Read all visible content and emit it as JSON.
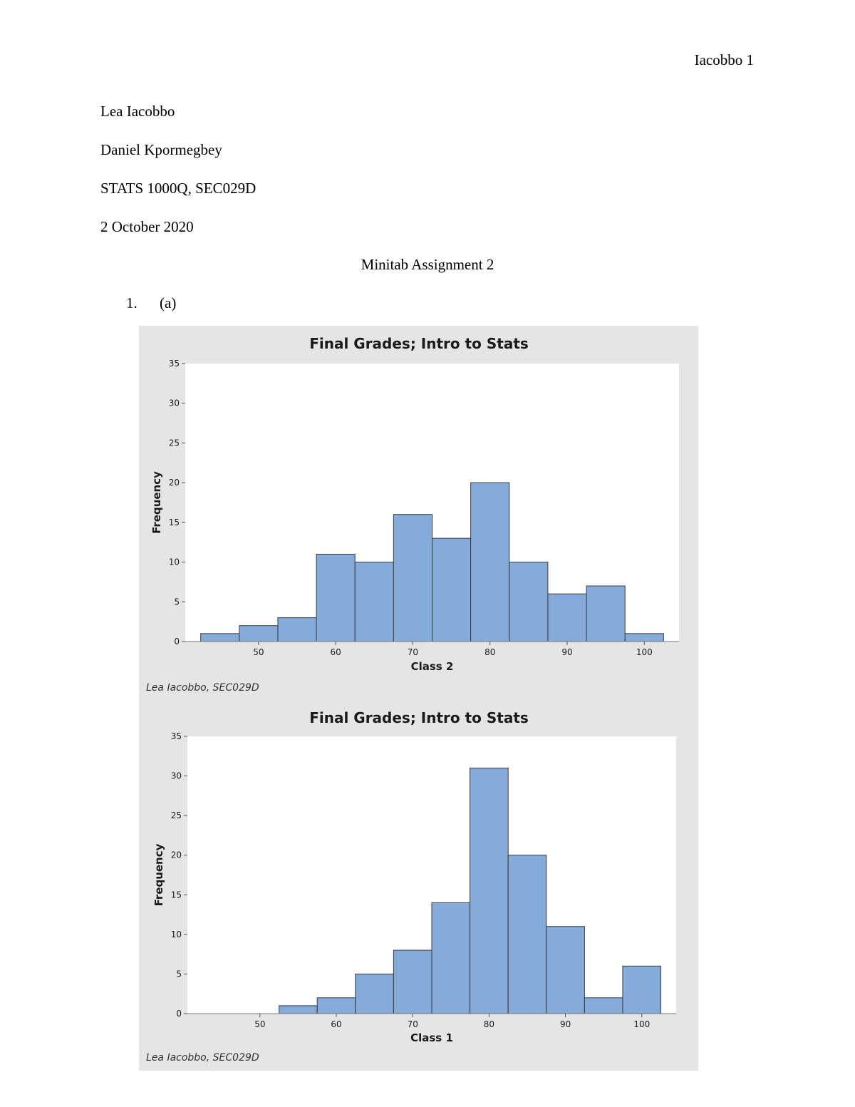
{
  "header": {
    "running_head": "Iacobbo 1"
  },
  "meta": {
    "student": "Lea Iacobbo",
    "instructor": "Daniel Kpormegbey",
    "course": "STATS 1000Q, SEC029D",
    "date": "2 October 2020"
  },
  "title": "Minitab Assignment 2",
  "question": {
    "number": "1.",
    "part": "(a)"
  },
  "colors": {
    "bar_fill": "#84abd9",
    "bar_stroke": "#3a3a3a",
    "figure_bg": "#e5e5e5",
    "plot_bg": "#ffffff"
  },
  "chart_data": [
    {
      "type": "bar",
      "title": "Final Grades; Intro to Stats",
      "xlabel": "Class 2",
      "ylabel": "Frequency",
      "footnote": "Lea Iacobbo, SEC029D",
      "bin_width": 5,
      "bin_centers": [
        45,
        50,
        55,
        60,
        65,
        70,
        75,
        80,
        85,
        90,
        95,
        100
      ],
      "values": [
        1,
        2,
        3,
        11,
        10,
        16,
        13,
        20,
        10,
        6,
        7,
        1
      ],
      "xlim": [
        40.5,
        104.5
      ],
      "ylim": [
        0,
        35
      ],
      "xticks": [
        50,
        60,
        70,
        80,
        90,
        100
      ],
      "yticks": [
        0,
        5,
        10,
        15,
        20,
        25,
        30,
        35
      ],
      "grid": false
    },
    {
      "type": "bar",
      "title": "Final Grades; Intro to Stats",
      "xlabel": "Class 1",
      "ylabel": "Frequency",
      "footnote": "Lea Iacobbo, SEC029D",
      "bin_width": 5,
      "bin_centers": [
        45,
        50,
        55,
        60,
        65,
        70,
        75,
        80,
        85,
        90,
        95,
        100
      ],
      "values": [
        0,
        0,
        1,
        2,
        5,
        8,
        14,
        31,
        20,
        11,
        2,
        6
      ],
      "xlim": [
        40.5,
        104.5
      ],
      "ylim": [
        0,
        35
      ],
      "xticks": [
        50,
        60,
        70,
        80,
        90,
        100
      ],
      "yticks": [
        0,
        5,
        10,
        15,
        20,
        25,
        30,
        35
      ],
      "grid": false
    }
  ]
}
